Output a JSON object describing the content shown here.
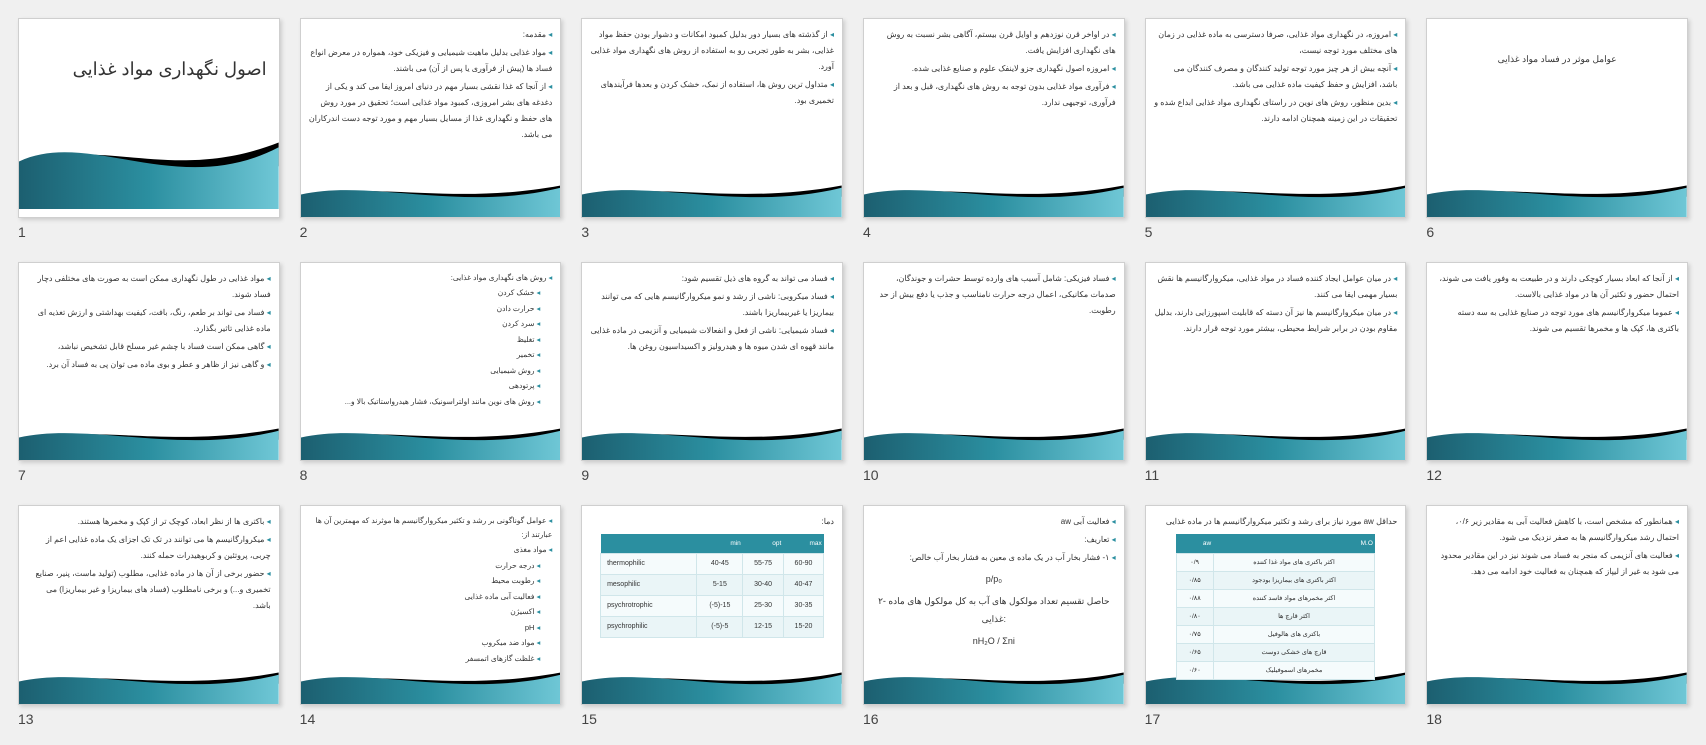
{
  "palette": {
    "teal_dark": "#1c5f70",
    "teal": "#2b8fa0",
    "teal_light": "#4fb0c2",
    "black": "#000000",
    "bg": "#f0f0f0"
  },
  "slides": [
    {
      "n": "1",
      "type": "title",
      "title": "اصول نگهداری مواد غذایی"
    },
    {
      "n": "2",
      "bullets": [
        "مقدمه:",
        "مواد غذایی بدلیل ماهیت شیمیایی و فیزیکی خود، همواره در معرض انواع فساد ها (پیش از فرآوری یا پس از آن) می باشند.",
        "از آنجا که غذا نقشی بسیار مهم در دنیای امروز ایفا می کند و یکی از دغدغه های بشر امروزی، کمبود مواد غذایی است؛ تحقیق در مورد روش های حفظ و نگهداری غذا از مسایل بسیار مهم و مورد توجه دست اندرکاران می باشد."
      ]
    },
    {
      "n": "3",
      "bullets": [
        "از گذشته های بسیار دور بدلیل کمبود امکانات و دشوار بودن حفظ مواد غذایی، بشر به طور تجربی رو به استفاده از روش های نگهداری مواد غذایی آورد.",
        "متداول ترین روش ها، استفاده از نمک، خشک کردن و بعدها فرآیندهای تخمیری بود."
      ]
    },
    {
      "n": "4",
      "bullets": [
        "در اواخر قرن نوزدهم و اوایل قرن بیستم، آگاهی بشر نسبت به روش های نگهداری افزایش یافت.",
        "امروزه اصول نگهداری جزو لاینفک علوم و صنایع غذایی شده.",
        "فرآوری مواد غذایی بدون توجه به روش های نگهداری، قبل و بعد از فرآوری، توجیهی ندارد."
      ]
    },
    {
      "n": "5",
      "bullets": [
        "امروزه، در نگهداری مواد غذایی، صرفا دسترسی به ماده غذایی در زمان های مختلف مورد توجه نیست،",
        "آنچه بیش از هر چیز مورد توجه تولید کنندگان و مصرف کنندگان می باشد، افزایش و حفظ کیفیت ماده غذایی می باشد.",
        "بدین منظور، روش های نوین در راستای نگهداری مواد غذایی ابداع شده و تحقیقات در این زمینه همچنان ادامه دارند."
      ]
    },
    {
      "n": "6",
      "heading": "عوامل موثر در فساد مواد غذایی"
    },
    {
      "n": "7",
      "bullets": [
        "مواد غذایی در طول نگهداری ممکن است به صورت های مختلفی دچار فساد شوند.",
        "فساد می تواند بر طعم، رنگ، بافت، کیفیت بهداشتی و ارزش تغذیه ای ماده غذایی تاثیر بگذارد.",
        "گاهی ممکن است فساد با چشم غیر مسلح قابل تشخیص نباشد،",
        "و گاهی نیز از ظاهر و عطر و بوی ماده می توان پی به فساد آن برد."
      ]
    },
    {
      "n": "8",
      "bullets": [
        "روش های نگهداری مواد غذایی:",
        "خشک کردن",
        "حرارت دادن",
        "سرد کردن",
        "تغلیظ",
        "تخمیر",
        "روش شیمیایی",
        "پرتودهی",
        "روش های نوین مانند اولتراسونیک، فشار هیدرواستاتیک بالا و..."
      ],
      "indent": [
        1,
        1,
        1,
        1,
        1,
        1,
        1,
        1
      ]
    },
    {
      "n": "9",
      "bullets": [
        "فساد می تواند به گروه های ذیل تقسیم شود:",
        "فساد میکروبی: ناشی از رشد و نمو میکروارگانیسم هایی که می توانند بیماریزا یا غیربیماریزا باشند.",
        "فساد شیمیایی: ناشی از فعل و انفعالات شیمیایی و آنزیمی در ماده غذایی مانند قهوه ای شدن میوه ها و هیدرولیز و اکسیداسیون روغن ها."
      ]
    },
    {
      "n": "10",
      "bullets": [
        "فساد فیزیکی: شامل آسیب های وارده توسط حشرات و جوندگان، صدمات مکانیکی، اعمال درجه حرارت نامناسب و جذب یا دفع بیش از حد رطوبت."
      ]
    },
    {
      "n": "11",
      "bullets": [
        "در میان عوامل ایجاد کننده فساد در مواد غذایی، میکروارگانیسم ها نقش بسیار مهمی ایفا می کنند.",
        "در میان میکروارگانیسم ها نیز آن دسته که قابلیت اسپورزایی دارند، بدلیل مقاوم بودن در برابر شرایط محیطی، بیشتر مورد توجه قرار دارند."
      ]
    },
    {
      "n": "12",
      "bullets": [
        "از آنجا که ابعاد بسیار کوچکی دارند و در طبیعت به وفور یافت می شوند، احتمال حضور و تکثیر آن ها در مواد غذایی بالاست.",
        "عموما میکروارگانیسم های مورد توجه در صنایع غذایی به سه دسته باکتری ها، کپک ها و مخمرها تقسیم می شوند."
      ]
    },
    {
      "n": "13",
      "bullets": [
        "باکتری ها از نظر ابعاد، کوچک تر از کپک و مخمرها هستند.",
        "میکروارگانیسم ها می توانند در تک تک اجزای یک ماده غذایی اعم از چربی، پروتئین و کربوهیدرات حمله کنند.",
        "حضور برخی از آن ها در ماده غذایی، مطلوب (تولید ماست، پنیر، صنایع تخمیری و...) و برخی نامطلوب (فساد های بیماریزا و غیر بیماریزا) می باشد."
      ]
    },
    {
      "n": "14",
      "bullets": [
        "عوامل گوناگونی بر رشد و تکثیر میکروارگانیسم ها موثرند که مهمترین آن ها عبارتند از:",
        "مواد مغذی",
        "درجه حرارت",
        "رطوبت محیط",
        "فعالیت آبی ماده غذایی",
        "اکسیژن",
        "pH",
        "مواد ضد میکروب",
        "غلظت گازهای اتمسفر"
      ],
      "indent": [
        0,
        1,
        1,
        1,
        1,
        1,
        1,
        1,
        1
      ]
    },
    {
      "n": "15",
      "top": "دما:",
      "table15": {
        "headers": [
          "",
          "min",
          "opt",
          "max"
        ],
        "rows": [
          [
            "thermophilic",
            "40-45",
            "55-75",
            "60-90"
          ],
          [
            "mesophilic",
            "5-15",
            "30-40",
            "40-47"
          ],
          [
            "psychrotrophic",
            "(-5)-15",
            "25-30",
            "30-35"
          ],
          [
            "psychrophilic",
            "(-5)-5",
            "12-15",
            "15-20"
          ]
        ]
      }
    },
    {
      "n": "16",
      "bullets": [
        "فعالیت آبی aw",
        "تعاریف:",
        "۱- فشار بخار آب در یک ماده ی معین به فشار بخار آب خالص:"
      ],
      "formulas": [
        "p/p₀",
        "۲- حاصل تقسیم تعداد مولکول های آب به کل مولکول های ماده غذایی:",
        "nH₂O / Σni"
      ]
    },
    {
      "n": "17",
      "top": "حداقل aw مورد نیاز برای رشد و تکثیر میکروارگانیسم ها در ماده غذایی",
      "table17": {
        "headers": [
          "M.O",
          "aw"
        ],
        "rows": [
          [
            "اکثر باکتری های مواد غذا کننده",
            "۰/۹"
          ],
          [
            "اکثر باکتری های بیماریزا بودجود",
            "۰/۸۵"
          ],
          [
            "اکثر مخمرهای مواد فاسد کننده",
            "۰/۸۸"
          ],
          [
            "اکثر قارچ ها",
            "۰/۸۰"
          ],
          [
            "باکتری های هالوفیل",
            "۰/۷۵"
          ],
          [
            "قارچ های خشکی دوست",
            "۰/۶۵"
          ],
          [
            "مخمرهای اسموفیلیک",
            "۰/۶۰"
          ]
        ]
      }
    },
    {
      "n": "18",
      "bullets": [
        "همانطور که مشخص است، با کاهش فعالیت آبی به مقادیر زیر ۰/۶، احتمال رشد میکروارگانیسم ها به صفر نزدیک می شود.",
        "فعالیت های آنزیمی که منجر به فساد می شوند نیز در این مقادیر محدود می شود به غیر از لیپاز که همچنان به فعالیت خود ادامه می دهد."
      ]
    }
  ]
}
